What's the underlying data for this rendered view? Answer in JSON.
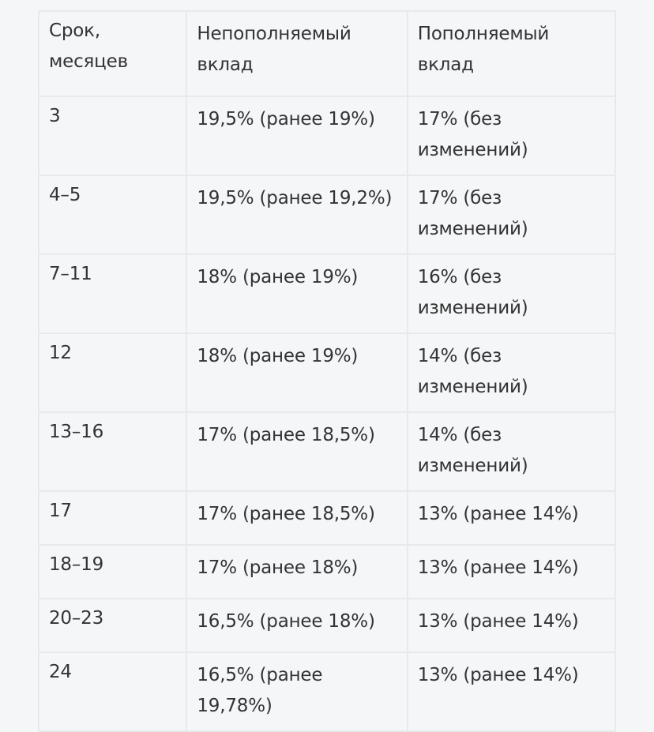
{
  "table": {
    "headers": [
      "Срок, месяцев",
      "Непополняемый вклад",
      "Пополняемый вклад"
    ],
    "header_lines": [
      [
        "Срок,",
        "месяцев"
      ],
      [
        "Непополняемый",
        "вклад"
      ],
      [
        "Пополняемый",
        "вклад"
      ]
    ],
    "rows": [
      {
        "term": "3",
        "non_replenishable": "19,5% (ранее 19%)",
        "replenishable_l1": "17% (без",
        "replenishable_l2": "изменений)",
        "non_l1": "19,5% (ранее 19%)",
        "non_l2": ""
      },
      {
        "term": "4–5",
        "non_l1": "19,5% (ранее 19,2%)",
        "non_l2": "",
        "replenishable_l1": "17% (без",
        "replenishable_l2": "изменений)"
      },
      {
        "term": "7–11",
        "non_l1": "18% (ранее 19%)",
        "non_l2": "",
        "replenishable_l1": "16% (без",
        "replenishable_l2": "изменений)"
      },
      {
        "term": "12",
        "non_l1": "18% (ранее 19%)",
        "non_l2": "",
        "replenishable_l1": "14% (без",
        "replenishable_l2": "изменений)"
      },
      {
        "term": "13–16",
        "non_l1": "17% (ранее 18,5%)",
        "non_l2": "",
        "replenishable_l1": "14% (без",
        "replenishable_l2": "изменений)"
      },
      {
        "term": "17",
        "non_l1": "17% (ранее 18,5%)",
        "non_l2": "",
        "replenishable_l1": "13% (ранее 14%)",
        "replenishable_l2": ""
      },
      {
        "term": "18–19",
        "non_l1": "17% (ранее 18%)",
        "non_l2": "",
        "replenishable_l1": "13% (ранее 14%)",
        "replenishable_l2": ""
      },
      {
        "term": "20–23",
        "non_l1": "16,5% (ранее 18%)",
        "non_l2": "",
        "replenishable_l1": "13% (ранее 14%)",
        "replenishable_l2": ""
      },
      {
        "term": "24",
        "non_l1": "16,5% (ранее",
        "non_l2": "19,78%)",
        "replenishable_l1": "13% (ранее 14%)",
        "replenishable_l2": ""
      }
    ]
  },
  "colors": {
    "background": "#f5f6f8",
    "border": "#e8e9ec",
    "text": "#333333"
  }
}
